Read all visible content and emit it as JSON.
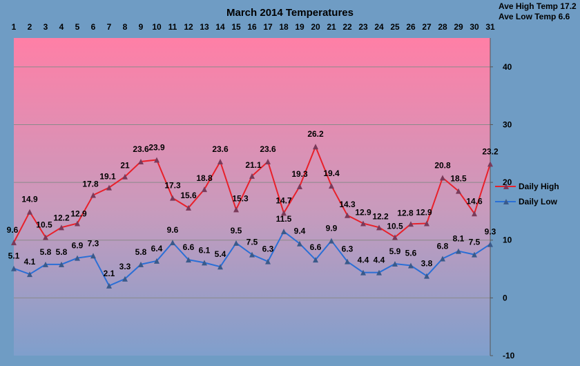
{
  "chart_data": {
    "type": "line",
    "title": "March 2014 Temperatures",
    "x": [
      1,
      2,
      3,
      4,
      5,
      6,
      7,
      8,
      9,
      10,
      11,
      12,
      13,
      14,
      15,
      16,
      17,
      18,
      19,
      20,
      21,
      22,
      23,
      24,
      25,
      26,
      27,
      28,
      29,
      30,
      31
    ],
    "xlabel": "",
    "ylabel": "",
    "ylim": [
      -10,
      45
    ],
    "yticks": [
      -10,
      0,
      10,
      20,
      30,
      40
    ],
    "y_axis_position": "right",
    "x_axis_position": "top",
    "grid": true,
    "legend_position": "right",
    "series": [
      {
        "name": "Daily High",
        "color": "#e8202a",
        "values": [
          9.6,
          14.9,
          10.5,
          12.2,
          12.9,
          17.8,
          19.1,
          21,
          23.6,
          23.9,
          17.3,
          15.6,
          18.8,
          23.6,
          15.3,
          21.1,
          23.6,
          14.7,
          19.3,
          26.2,
          19.4,
          14.3,
          12.9,
          12.2,
          10.5,
          12.8,
          12.9,
          20.8,
          18.5,
          14.6,
          23.2
        ]
      },
      {
        "name": "Daily Low",
        "color": "#2a6fd6",
        "values": [
          5.1,
          4.1,
          5.8,
          5.8,
          6.9,
          7.3,
          2.1,
          3.3,
          5.8,
          6.4,
          9.6,
          6.6,
          6.1,
          5.4,
          9.5,
          7.5,
          6.3,
          11.5,
          9.4,
          6.6,
          9.9,
          6.3,
          4.4,
          4.4,
          5.9,
          5.6,
          3.8,
          6.8,
          8.1,
          7.5,
          9.3
        ]
      }
    ],
    "annotations": {
      "ave_high": "Ave High Temp 17.2",
      "ave_low": "Ave Low Temp 6.6"
    }
  }
}
